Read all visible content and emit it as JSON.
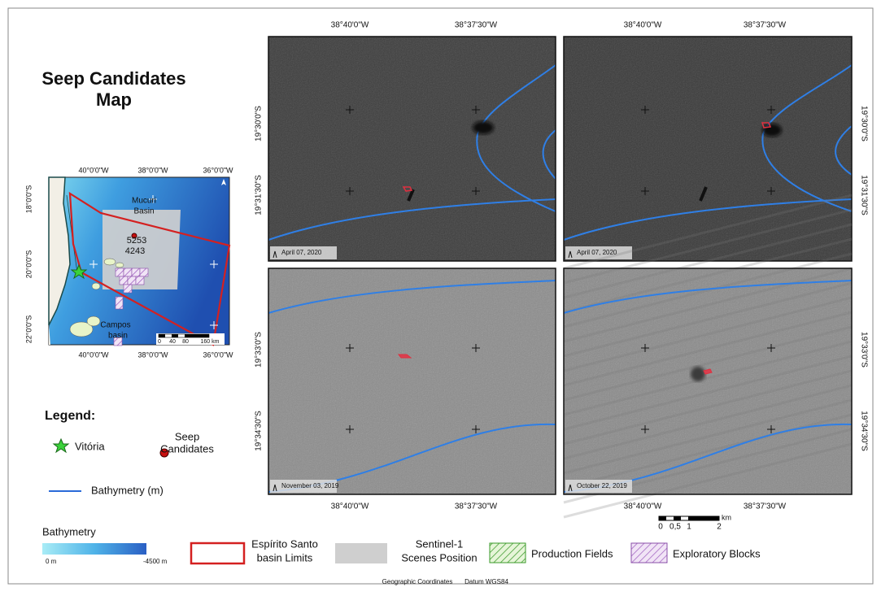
{
  "title_lines": [
    "Seep Candidates",
    "Map"
  ],
  "inset": {
    "lon_ticks": [
      "40°0'0\"W",
      "38°0'0\"W",
      "36°0'0\"W"
    ],
    "lat_ticks": [
      "18°0'0\"S",
      "20°0'0\"S",
      "22°0'0\"S"
    ],
    "mucuri_label": [
      "Mucuri",
      "Basin"
    ],
    "campos_label": [
      "Campos",
      "basin"
    ],
    "seep_ids": [
      "5253",
      "4243"
    ],
    "scale_labels": [
      "0",
      "40",
      "80",
      "160 km"
    ]
  },
  "legend": {
    "heading": "Legend:",
    "vitoria": "Vitória",
    "seep": [
      "Seep",
      "Candidates"
    ],
    "bathymetry_line": "Bathymetry (m)"
  },
  "panels": [
    {
      "date": "April 07, 2020"
    },
    {
      "date": "April 07, 2020"
    },
    {
      "date": "November 03, 2019"
    },
    {
      "date": "October 22, 2019"
    }
  ],
  "lon_ticks": [
    "38°40'0\"W",
    "38°37'30\"W"
  ],
  "lat_ticks_top": [
    "19°30'0\"S",
    "19°31'30\"S"
  ],
  "lat_ticks_bottom": [
    "19°33'0\"S",
    "19°34'30\"S"
  ],
  "scale_bar": {
    "unit": "km",
    "labels": [
      "0",
      "0,5",
      "1",
      "2"
    ]
  },
  "key": {
    "bathymetry_title": "Bathymetry",
    "min": "0 m",
    "max": "-4500 m",
    "basin_limits": [
      "Espírito Santo",
      "basin Limits"
    ],
    "scenes": [
      "Sentinel-1",
      "Scenes Position"
    ],
    "production": "Production Fields",
    "exploratory": "Exploratory Blocks"
  },
  "footer": {
    "coordinates": "Geographic Coordinates",
    "datum": "Datum WGS84"
  }
}
